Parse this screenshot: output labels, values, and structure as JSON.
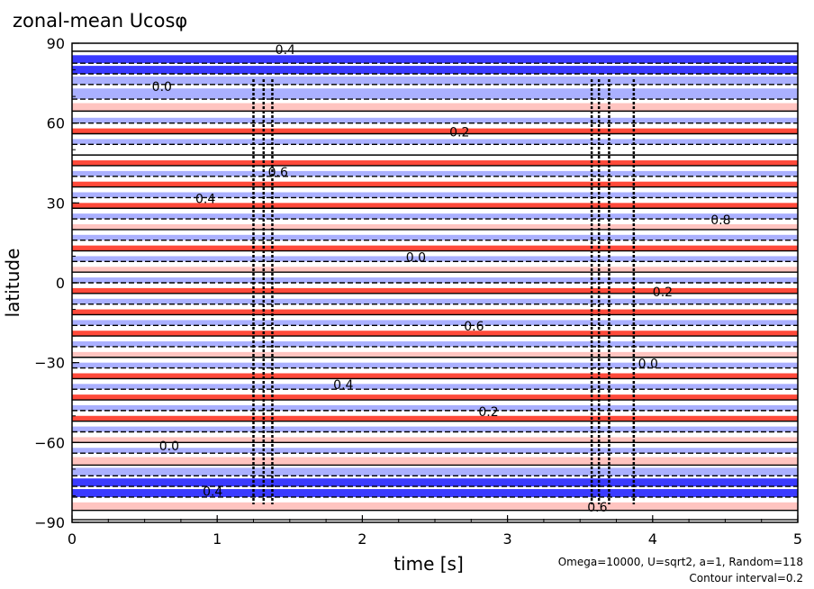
{
  "chart_data": {
    "type": "heatmap",
    "title": "zonal-mean Ucosφ",
    "xlabel": "time [s]",
    "ylabel": "latitude",
    "xlim": [
      0,
      5
    ],
    "ylim": [
      -90,
      90
    ],
    "x_ticks": [
      "0",
      "1",
      "2",
      "3",
      "4",
      "5"
    ],
    "y_ticks": [
      "90",
      "60",
      "30",
      "0",
      "−30",
      "−60",
      "−90"
    ],
    "annotations": [
      "Omega=10000, U=sqrt2, a=1, Random=118",
      "Contour interval=0.2"
    ],
    "contour_interval": 0.2,
    "contour_labels": [
      "0.4",
      "0.0",
      "0.2",
      "0.6",
      "0.8",
      "0.4",
      "0.0",
      "0.2",
      "0.6",
      "0.0",
      "0.4",
      "0.2",
      "0.0",
      "0.4",
      "0.6"
    ],
    "colors": {
      "negative": "#3a3aff",
      "negative_light": "#aab0ff",
      "positive": "#ff4a3a",
      "positive_light": "#ffc4c0",
      "background": "#ffffff"
    },
    "bands": [
      {
        "lat": 88,
        "width": 2,
        "value": 0.0
      },
      {
        "lat": 84,
        "width": 3,
        "value": -1.4
      },
      {
        "lat": 80,
        "width": 3,
        "value": -1.2
      },
      {
        "lat": 76,
        "width": 3,
        "value": -0.8
      },
      {
        "lat": 71,
        "width": 4,
        "value": -0.3
      },
      {
        "lat": 66,
        "width": 3,
        "value": 0.2
      },
      {
        "lat": 61,
        "width": 2,
        "value": -0.4
      },
      {
        "lat": 57,
        "width": 2,
        "value": 0.4
      },
      {
        "lat": 53,
        "width": 2,
        "value": -0.5
      },
      {
        "lat": 49,
        "width": 2,
        "value": 0.0
      },
      {
        "lat": 45,
        "width": 2,
        "value": 0.4
      },
      {
        "lat": 41,
        "width": 2,
        "value": -0.6
      },
      {
        "lat": 37,
        "width": 2,
        "value": 0.5
      },
      {
        "lat": 33,
        "width": 2,
        "value": -0.4
      },
      {
        "lat": 29,
        "width": 2,
        "value": 0.4
      },
      {
        "lat": 25,
        "width": 2,
        "value": -0.6
      },
      {
        "lat": 21,
        "width": 2,
        "value": 0.3
      },
      {
        "lat": 17,
        "width": 2,
        "value": -0.5
      },
      {
        "lat": 13,
        "width": 2,
        "value": 0.5
      },
      {
        "lat": 9,
        "width": 2,
        "value": -0.4
      },
      {
        "lat": 5,
        "width": 2,
        "value": 0.2
      },
      {
        "lat": 1,
        "width": 2,
        "value": -0.6
      },
      {
        "lat": -3,
        "width": 2,
        "value": 0.4
      },
      {
        "lat": -7,
        "width": 2,
        "value": -0.5
      },
      {
        "lat": -11,
        "width": 2,
        "value": 0.5
      },
      {
        "lat": -15,
        "width": 2,
        "value": -0.4
      },
      {
        "lat": -19,
        "width": 2,
        "value": 0.4
      },
      {
        "lat": -23,
        "width": 2,
        "value": -0.5
      },
      {
        "lat": -27,
        "width": 2,
        "value": 0.3
      },
      {
        "lat": -31,
        "width": 2,
        "value": -0.4
      },
      {
        "lat": -35,
        "width": 2,
        "value": 0.5
      },
      {
        "lat": -39,
        "width": 2,
        "value": -0.5
      },
      {
        "lat": -43,
        "width": 2,
        "value": 0.4
      },
      {
        "lat": -47,
        "width": 2,
        "value": -0.4
      },
      {
        "lat": -51,
        "width": 2,
        "value": 0.5
      },
      {
        "lat": -55,
        "width": 2,
        "value": -0.5
      },
      {
        "lat": -59,
        "width": 2,
        "value": 0.3
      },
      {
        "lat": -63,
        "width": 2,
        "value": -0.5
      },
      {
        "lat": -67,
        "width": 3,
        "value": 0.2
      },
      {
        "lat": -71,
        "width": 3,
        "value": -0.6
      },
      {
        "lat": -75,
        "width": 3,
        "value": -1.2
      },
      {
        "lat": -79,
        "width": 3,
        "value": -1.4
      },
      {
        "lat": -84,
        "width": 3,
        "value": 0.2
      },
      {
        "lat": -88,
        "width": 2,
        "value": 0.0
      }
    ]
  }
}
